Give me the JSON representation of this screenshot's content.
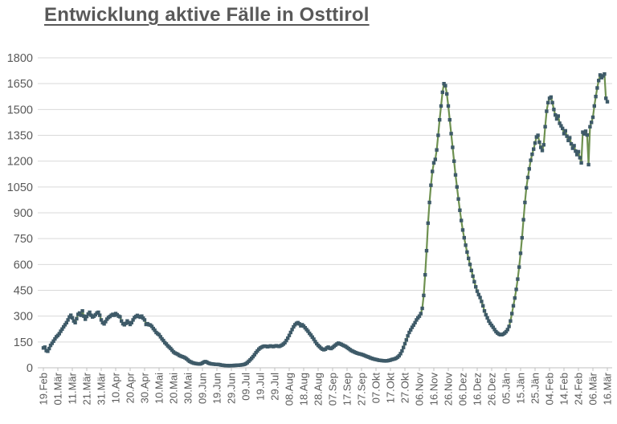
{
  "colors": {
    "line": "#6E9150",
    "marker": "#3E5A68",
    "grid": "#D9D9D9",
    "axis": "#BFBFBF",
    "text": "#595959",
    "background": "#FFFFFF"
  },
  "chart_data": {
    "type": "line",
    "title": "Entwicklung aktive Fälle in Osttirol",
    "xlabel": "",
    "ylabel": "",
    "ylim": [
      0,
      1800
    ],
    "y_ticks": [
      0,
      150,
      300,
      450,
      600,
      750,
      900,
      1050,
      1200,
      1350,
      1500,
      1650,
      1800
    ],
    "grid": "horizontal",
    "legend": "none",
    "marker": "square",
    "x_tick_interval_days": 10,
    "x_tick_labels": [
      "19.Feb",
      "01.Mär",
      "11.Mär",
      "21.Mär",
      "31.Mär",
      "10.Apr",
      "20.Apr",
      "30.Apr",
      "10.Mai",
      "20.Mai",
      "30.Mai",
      "09.Jun",
      "19.Jun",
      "29.Jun",
      "09.Jul",
      "19.Jul",
      "29.Jul",
      "08.Aug",
      "18.Aug",
      "28.Aug",
      "07.Sep",
      "17.Sep",
      "27.Sep",
      "07.Okt",
      "17.Okt",
      "27.Okt",
      "06.Nov",
      "16.Nov",
      "26.Nov",
      "06.Dez",
      "16.Dez",
      "26.Dez",
      "05.Jän",
      "15.Jän",
      "25.Jän",
      "04.Feb",
      "14.Feb",
      "24.Feb",
      "06.Mär",
      "16.Mär"
    ],
    "series": [
      {
        "name": "aktive Fälle",
        "values": [
          115,
          120,
          100,
          96,
          112,
          130,
          142,
          155,
          168,
          180,
          188,
          198,
          212,
          225,
          238,
          250,
          262,
          278,
          295,
          305,
          290,
          272,
          262,
          285,
          310,
          318,
          305,
          330,
          300,
          282,
          298,
          312,
          322,
          305,
          295,
          300,
          308,
          318,
          322,
          305,
          278,
          262,
          255,
          268,
          282,
          292,
          298,
          305,
          310,
          305,
          315,
          308,
          300,
          296,
          272,
          256,
          250,
          258,
          272,
          262,
          252,
          262,
          278,
          292,
          298,
          304,
          298,
          294,
          300,
          288,
          278,
          252,
          256,
          250,
          248,
          240,
          228,
          218,
          205,
          198,
          192,
          180,
          168,
          158,
          146,
          138,
          128,
          120,
          112,
          102,
          92,
          86,
          82,
          78,
          72,
          68,
          65,
          62,
          58,
          52,
          45,
          38,
          34,
          30,
          27,
          25,
          24,
          23,
          22,
          24,
          28,
          33,
          36,
          33,
          28,
          25,
          23,
          22,
          21,
          20,
          20,
          19,
          18,
          16,
          15,
          14,
          13,
          13,
          12,
          12,
          13,
          13,
          14,
          14,
          15,
          15,
          16,
          17,
          18,
          20,
          24,
          30,
          38,
          46,
          55,
          65,
          76,
          88,
          98,
          108,
          115,
          120,
          124,
          126,
          125,
          122,
          124,
          127,
          125,
          123,
          126,
          128,
          126,
          124,
          128,
          132,
          138,
          146,
          158,
          172,
          188,
          205,
          222,
          238,
          250,
          258,
          262,
          255,
          244,
          250,
          242,
          232,
          222,
          212,
          200,
          190,
          178,
          166,
          152,
          140,
          130,
          122,
          114,
          108,
          105,
          108,
          115,
          120,
          114,
          112,
          118,
          125,
          132,
          138,
          143,
          140,
          136,
          132,
          128,
          124,
          118,
          112,
          106,
          100,
          96,
          92,
          88,
          85,
          82,
          80,
          78,
          75,
          72,
          68,
          65,
          62,
          58,
          55,
          52,
          50,
          48,
          46,
          44,
          43,
          42,
          41,
          40,
          40,
          41,
          43,
          45,
          48,
          50,
          52,
          56,
          62,
          70,
          82,
          98,
          118,
          140,
          162,
          185,
          205,
          220,
          235,
          248,
          262,
          278,
          290,
          300,
          315,
          345,
          420,
          540,
          680,
          840,
          960,
          1060,
          1140,
          1190,
          1210,
          1265,
          1350,
          1440,
          1520,
          1600,
          1650,
          1638,
          1590,
          1520,
          1440,
          1360,
          1280,
          1200,
          1120,
          1050,
          980,
          915,
          855,
          800,
          755,
          712,
          672,
          635,
          600,
          565,
          532,
          500,
          470,
          445,
          425,
          408,
          385,
          360,
          330,
          308,
          290,
          272,
          258,
          246,
          235,
          222,
          210,
          202,
          196,
          192,
          192,
          196,
          202,
          210,
          222,
          240,
          272,
          315,
          360,
          405,
          455,
          515,
          585,
          665,
          755,
          860,
          960,
          1045,
          1105,
          1155,
          1205,
          1240,
          1270,
          1305,
          1340,
          1350,
          1310,
          1280,
          1262,
          1295,
          1400,
          1490,
          1540,
          1565,
          1572,
          1540,
          1500,
          1468,
          1445,
          1462,
          1420,
          1405,
          1390,
          1360,
          1376,
          1345,
          1320,
          1336,
          1300,
          1275,
          1290,
          1258,
          1238,
          1255,
          1220,
          1190,
          1368,
          1358,
          1374,
          1352,
          1180,
          1400,
          1425,
          1455,
          1520,
          1575,
          1625,
          1668,
          1700,
          1685,
          1695,
          1706,
          1565,
          1545
        ]
      }
    ]
  }
}
